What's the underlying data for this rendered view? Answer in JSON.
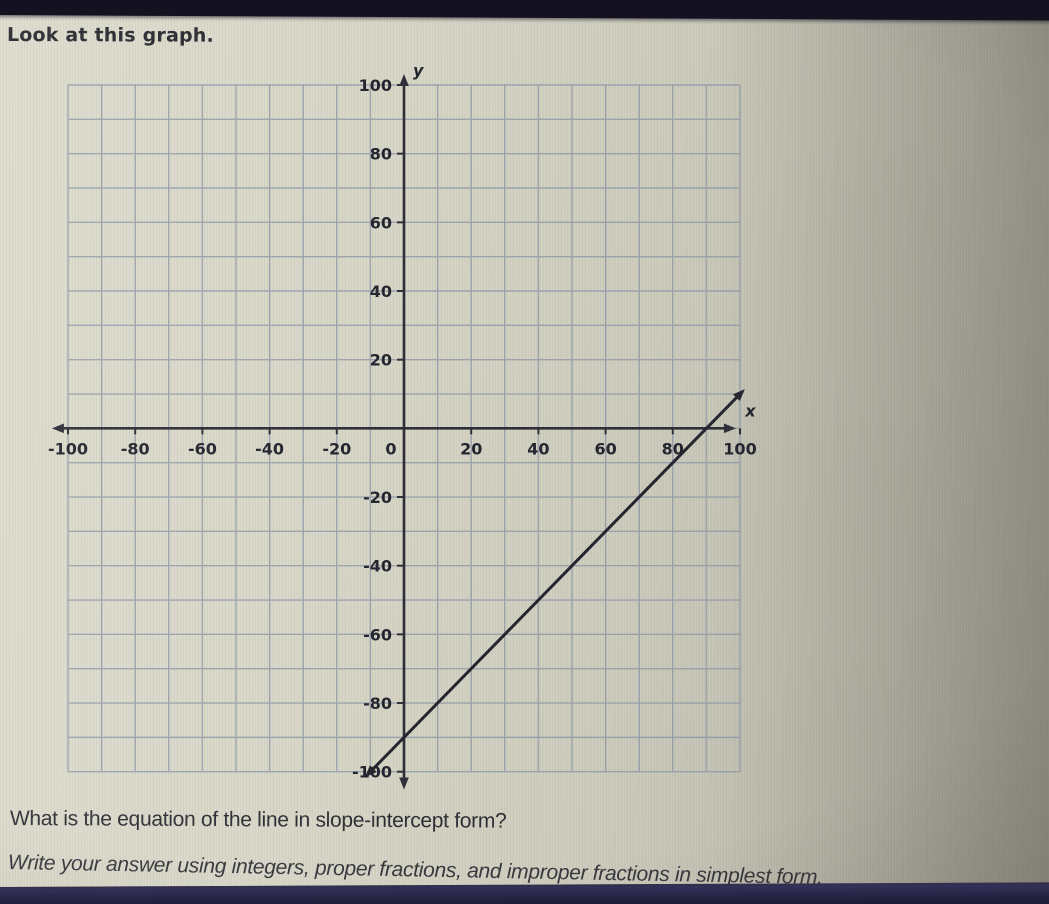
{
  "screen": {
    "header": "Look at this graph.",
    "question": "What is the equation of the line in slope-intercept form?",
    "instruction": "Write your answer using integers, proper fractions, and improper fractions in simplest form."
  },
  "colors": {
    "grid_line": "#8e97a8",
    "axis": "#2b2b35",
    "plotted_line": "#20212b",
    "label_text": "#1f212b",
    "screen_light": "#dcdbcc",
    "screen_dark": "#a4a296",
    "bezel_top": "#141121",
    "bezel_bottom": "#201e3a"
  },
  "chart_data": {
    "type": "line",
    "title": "",
    "xlabel": "x",
    "ylabel": "y",
    "xlim": [
      -100,
      100
    ],
    "ylim": [
      -100,
      100
    ],
    "grid": true,
    "grid_step": 10,
    "label_step": 20,
    "x_ticks": [
      -100,
      -80,
      -60,
      -40,
      -20,
      0,
      20,
      40,
      60,
      80,
      100
    ],
    "y_ticks": [
      -100,
      -80,
      -60,
      -40,
      -20,
      20,
      40,
      60,
      80,
      100
    ],
    "series": [
      {
        "name": "plotted-line",
        "slope": 1,
        "y_intercept": -90,
        "x_intercept": 90,
        "equation": "y = x - 90",
        "points": [
          [
            -10,
            -100
          ],
          [
            0,
            -90
          ],
          [
            90,
            0
          ],
          [
            100,
            10
          ]
        ],
        "draw_from_x": -11,
        "draw_to_x": 100.8
      }
    ],
    "legend": false
  }
}
